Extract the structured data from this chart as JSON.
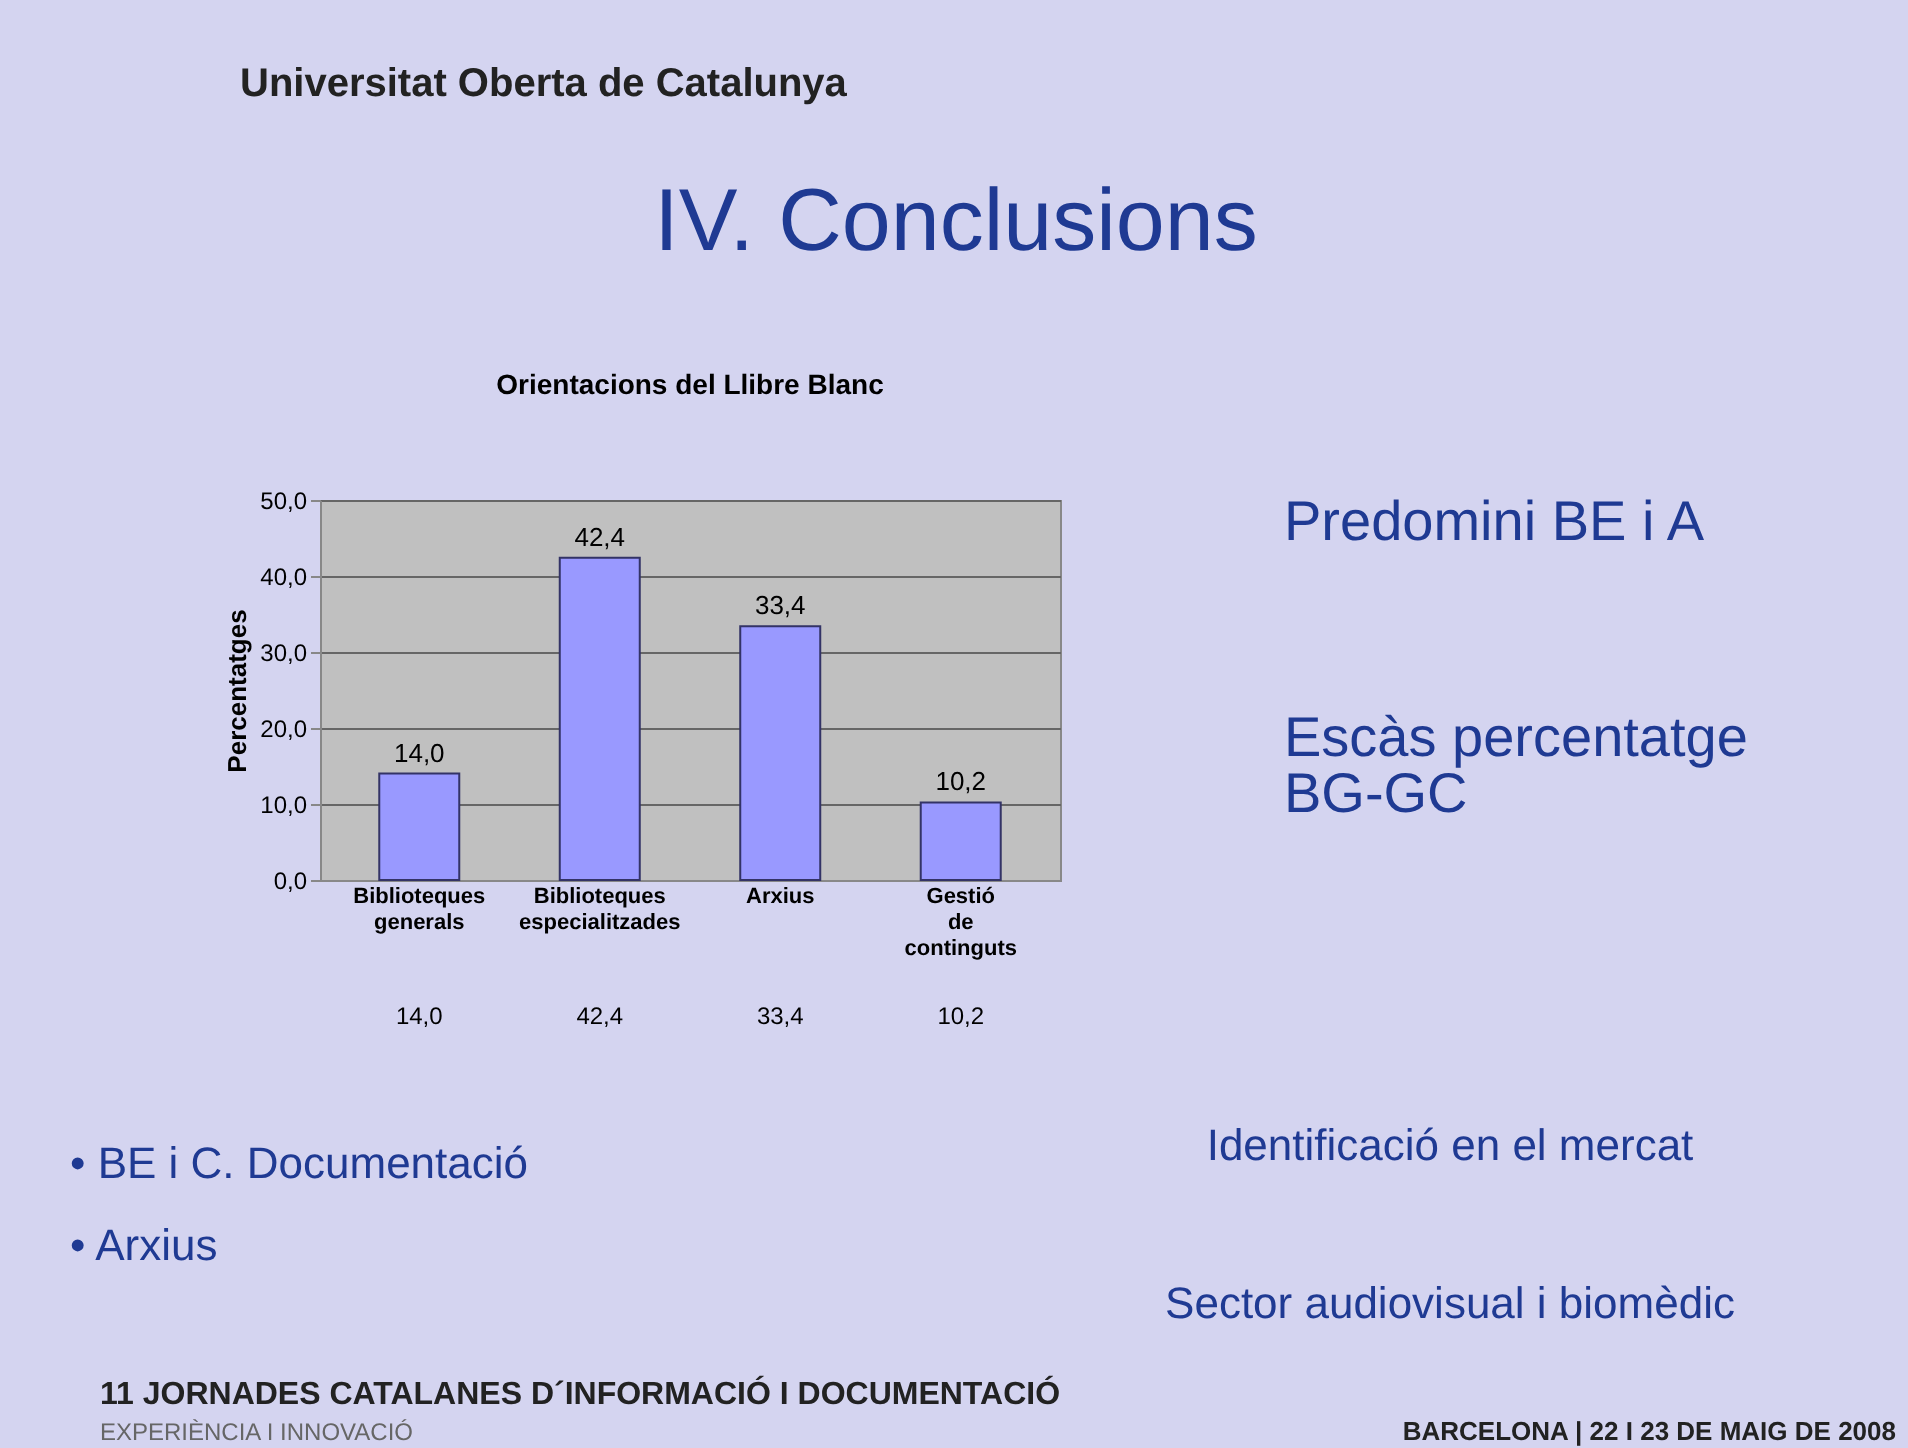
{
  "chart_data": {
    "type": "bar",
    "title": "Orientacions del Llibre Blanc",
    "ylabel": "Percentatges",
    "categories": [
      "Biblioteques generals",
      "Biblioteques especialitzades",
      "Arxius",
      "Gestió de continguts"
    ],
    "values": [
      14.0,
      42.4,
      33.4,
      10.2
    ],
    "color": "#9999ff",
    "value_labels": [
      "14,0",
      "42,4",
      "33,4",
      "10,2"
    ],
    "ylim": [
      0,
      50
    ],
    "yticks": [
      {
        "value": 0,
        "label": "0,0"
      },
      {
        "value": 10,
        "label": "10,0"
      },
      {
        "value": 20,
        "label": "20,0"
      },
      {
        "value": 30,
        "label": "30,0"
      },
      {
        "value": 40,
        "label": "40,0"
      },
      {
        "value": 50,
        "label": "50,0"
      }
    ],
    "grid": "y",
    "annotations": [
      "Universitat Oberta de Catalunya",
      "IV. Conclusions",
      "Predomini BE i A",
      "Escàs percentatge BG-GC",
      "• BE i C. Documentació",
      "• Arxius",
      "Identificació en el mercat",
      "Sector audiovisual i biomèdic",
      "11 JORNADES CATALANES D´INFORMACIÓ I DOCUMENTACIÓ",
      "EXPERIÈNCIA I INNOVACIÓ",
      "BARCELONA | 22 I 23 DE MAIG DE 2008"
    ]
  }
}
